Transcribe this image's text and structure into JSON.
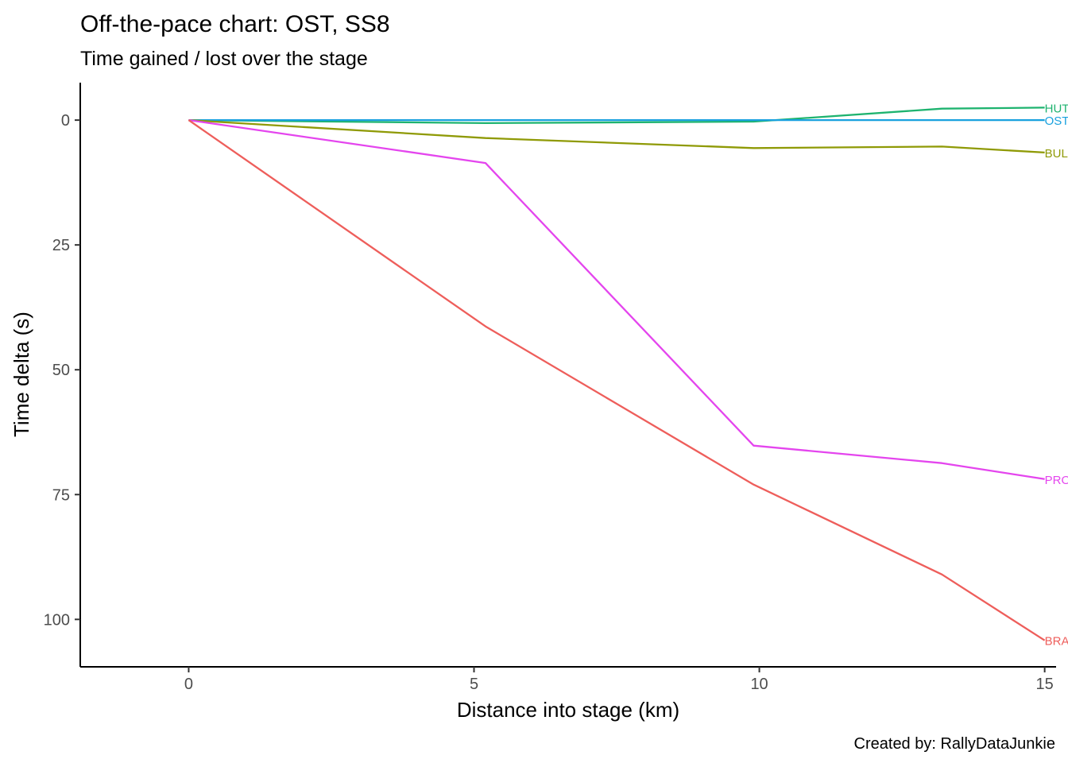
{
  "chart_data": {
    "type": "line",
    "title": "Off-the-pace chart: OST, SS8",
    "subtitle": "Time gained / lost over the stage",
    "xlabel": "Distance into stage (km)",
    "ylabel": "Time delta (s)",
    "caption": "Created by: RallyDataJunkie",
    "xlim": [
      -1.9,
      15.2
    ],
    "ylim": [
      -7.5,
      109.5
    ],
    "y_reversed": true,
    "x_ticks": [
      0,
      5,
      10,
      15
    ],
    "x_tick_labels": [
      "0",
      "5",
      "10",
      "15"
    ],
    "y_ticks": [
      0,
      25,
      50,
      75,
      100
    ],
    "y_tick_labels": [
      "0",
      "25",
      "50",
      "75",
      "100"
    ],
    "grid": false,
    "legend": "none (direct labels at line ends)",
    "series": [
      {
        "name": "HUT",
        "color": "#1EB36F",
        "x": [
          0,
          5.2,
          9.9,
          13.2,
          15
        ],
        "y": [
          0,
          0.6,
          0.3,
          -2.3,
          -2.5
        ]
      },
      {
        "name": "OST",
        "color": "#19A1DE",
        "x": [
          0,
          5.2,
          9.9,
          13.2,
          15
        ],
        "y": [
          0,
          0,
          0,
          0,
          0
        ]
      },
      {
        "name": "BUL",
        "color": "#8F9A06",
        "x": [
          0,
          5.2,
          9.9,
          13.2,
          15
        ],
        "y": [
          0,
          3.6,
          5.6,
          5.3,
          6.5
        ]
      },
      {
        "name": "PRO",
        "color": "#E445EE",
        "x": [
          0,
          5.2,
          9.9,
          13.2,
          15
        ],
        "y": [
          0,
          8.6,
          65.2,
          68.7,
          71.9
        ]
      },
      {
        "name": "BRA",
        "color": "#EE5E5B",
        "x": [
          0,
          5.2,
          9.9,
          13.2,
          15
        ],
        "y": [
          0,
          41.3,
          73.0,
          91.0,
          104.2
        ]
      }
    ]
  }
}
